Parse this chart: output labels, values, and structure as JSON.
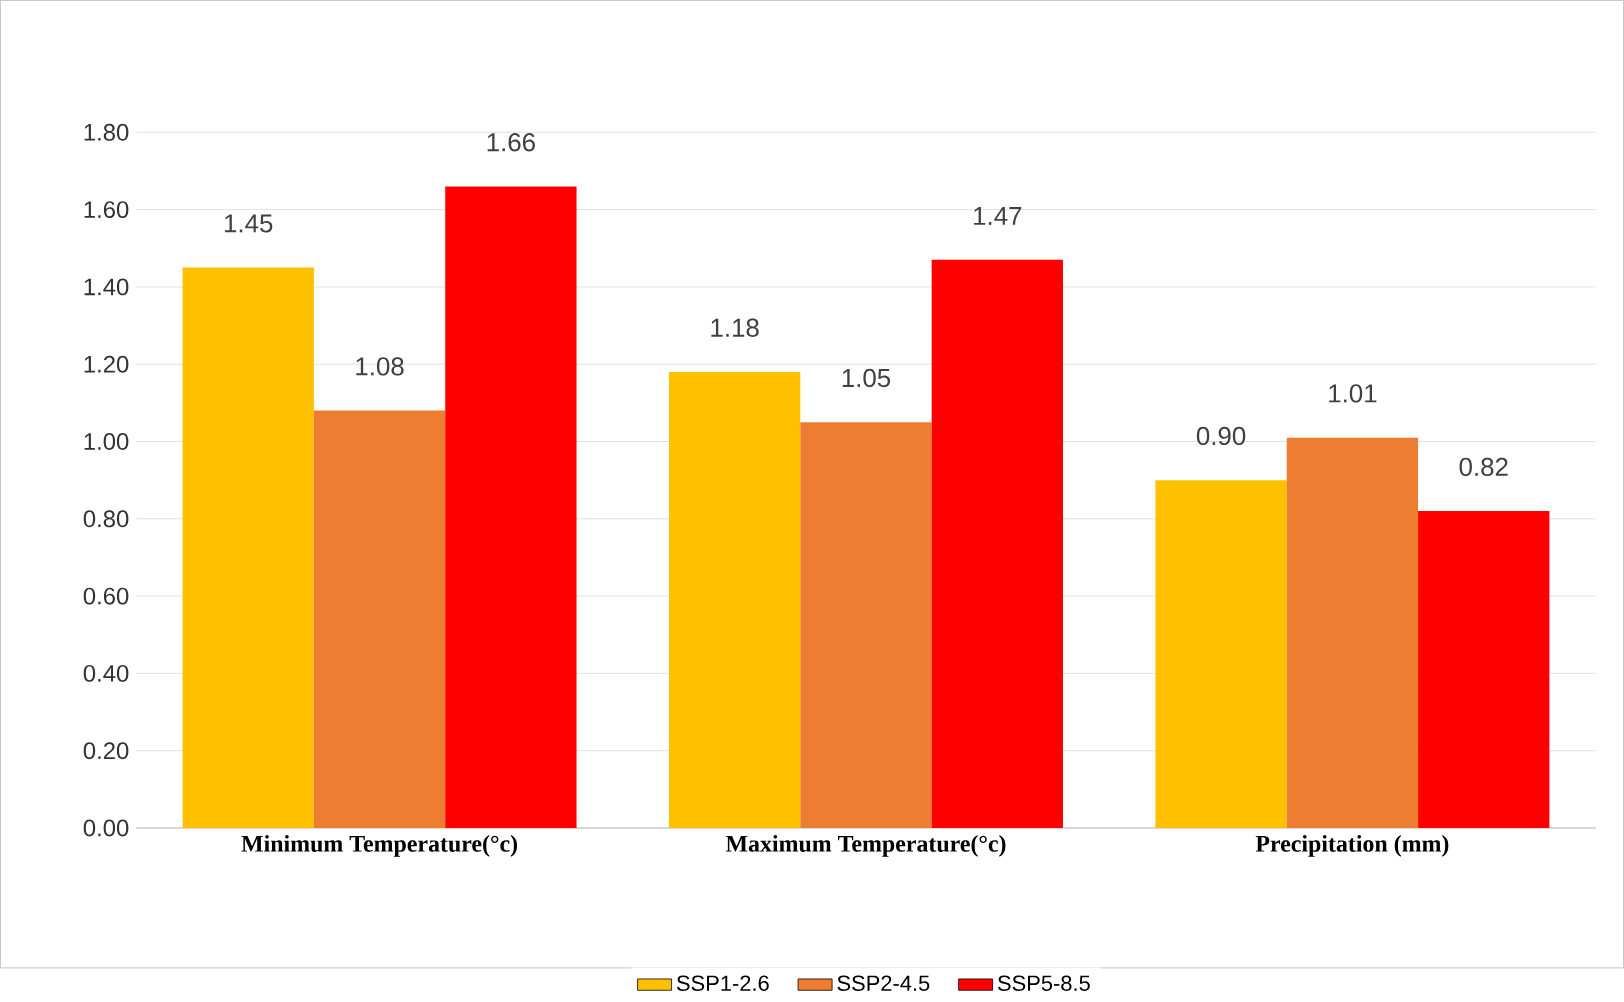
{
  "chart_data": {
    "type": "bar",
    "categories": [
      "Minimum Temperature(°c)",
      "Maximum Temperature(°c)",
      "Precipitation (mm)"
    ],
    "series": [
      {
        "name": "SSP1-2.6",
        "color": "#ffc000",
        "values": [
          1.45,
          1.18,
          0.9
        ],
        "value_labels": [
          "1.45",
          "1.18",
          "0.90"
        ]
      },
      {
        "name": "SSP2-4.5",
        "color": "#ed7d31",
        "values": [
          1.08,
          1.05,
          1.01
        ],
        "value_labels": [
          "1.08",
          "1.05",
          "1.01"
        ]
      },
      {
        "name": "SSP5-8.5",
        "color": "#ff0000",
        "values": [
          1.66,
          1.47,
          0.82
        ],
        "value_labels": [
          "1.66",
          "1.47",
          "0.82"
        ]
      }
    ],
    "ylim": [
      0,
      1.8
    ],
    "yticks": [
      {
        "value": 0,
        "label": "0.00"
      },
      {
        "value": 0.2,
        "label": "0.20"
      },
      {
        "value": 0.4,
        "label": "0.40"
      },
      {
        "value": 0.6,
        "label": "0.60"
      },
      {
        "value": 0.8,
        "label": "0.80"
      },
      {
        "value": 1.0,
        "label": "1.00"
      },
      {
        "value": 1.2,
        "label": "1.20"
      },
      {
        "value": 1.4,
        "label": "1.40"
      },
      {
        "value": 1.6,
        "label": "1.60"
      },
      {
        "value": 1.8,
        "label": "1.80"
      }
    ],
    "grid": "y",
    "legend": "bottom"
  }
}
